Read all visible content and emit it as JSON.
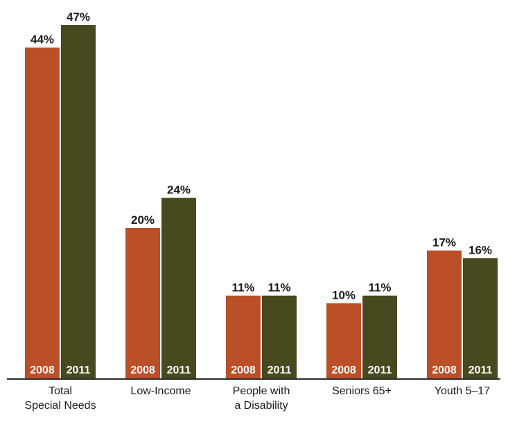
{
  "chart_data": {
    "type": "bar",
    "categories": [
      [
        "Total",
        "Special Needs"
      ],
      [
        "Low-Income"
      ],
      [
        "People with",
        "a Disability"
      ],
      [
        "Seniors 65+"
      ],
      [
        "Youth 5–17"
      ]
    ],
    "series": [
      {
        "name": "2008",
        "values": [
          44,
          20,
          11,
          10,
          17
        ],
        "color": "#bb4f27"
      },
      {
        "name": "2011",
        "values": [
          47,
          24,
          11,
          11,
          16
        ],
        "color": "#47491e"
      }
    ],
    "value_suffix": "%",
    "ylim": [
      0,
      50
    ],
    "grid": false,
    "legend": "none",
    "in_bar_labels": true,
    "label_color_dark": "#1a1a1a",
    "label_color_light": "#ffffff",
    "axis_color": "#2a2a2a"
  }
}
